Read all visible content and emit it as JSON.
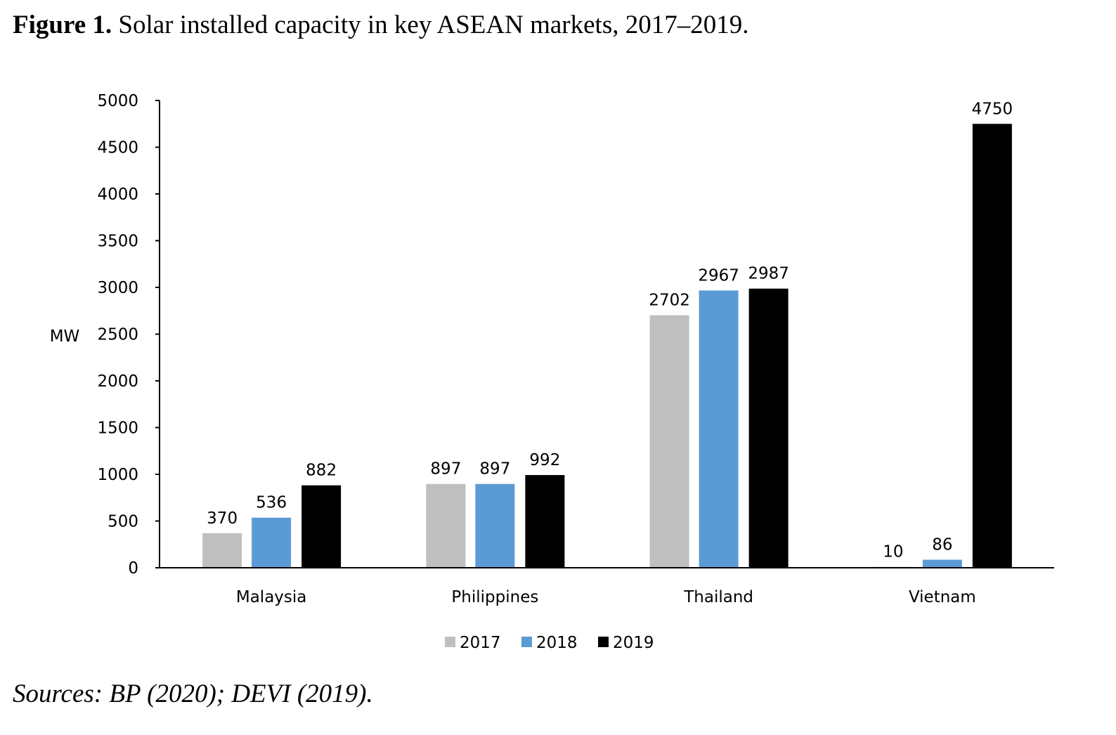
{
  "figure": {
    "label": "Figure 1.",
    "caption": "Solar installed capacity in key ASEAN markets, 2017–2019.",
    "sources": "Sources: BP (2020); DEVI (2019)."
  },
  "chart_data": {
    "type": "bar",
    "title": "Solar installed capacity in key ASEAN markets, 2017–2019",
    "xlabel": "",
    "ylabel": "MW",
    "ylim": [
      0,
      5000
    ],
    "yticks": [
      0,
      500,
      1000,
      1500,
      2000,
      2500,
      3000,
      3500,
      4000,
      4500,
      5000
    ],
    "grid": false,
    "legend": "bottom",
    "categories": [
      "Malaysia",
      "Philippines",
      "Thailand",
      "Vietnam"
    ],
    "series": [
      {
        "name": "2017",
        "color": "#bfbfbf",
        "values": [
          370,
          897,
          2702,
          10
        ]
      },
      {
        "name": "2018",
        "color": "#5b9bd5",
        "values": [
          536,
          897,
          2967,
          86
        ]
      },
      {
        "name": "2019",
        "color": "#000000",
        "values": [
          882,
          992,
          2987,
          4750
        ]
      }
    ]
  }
}
